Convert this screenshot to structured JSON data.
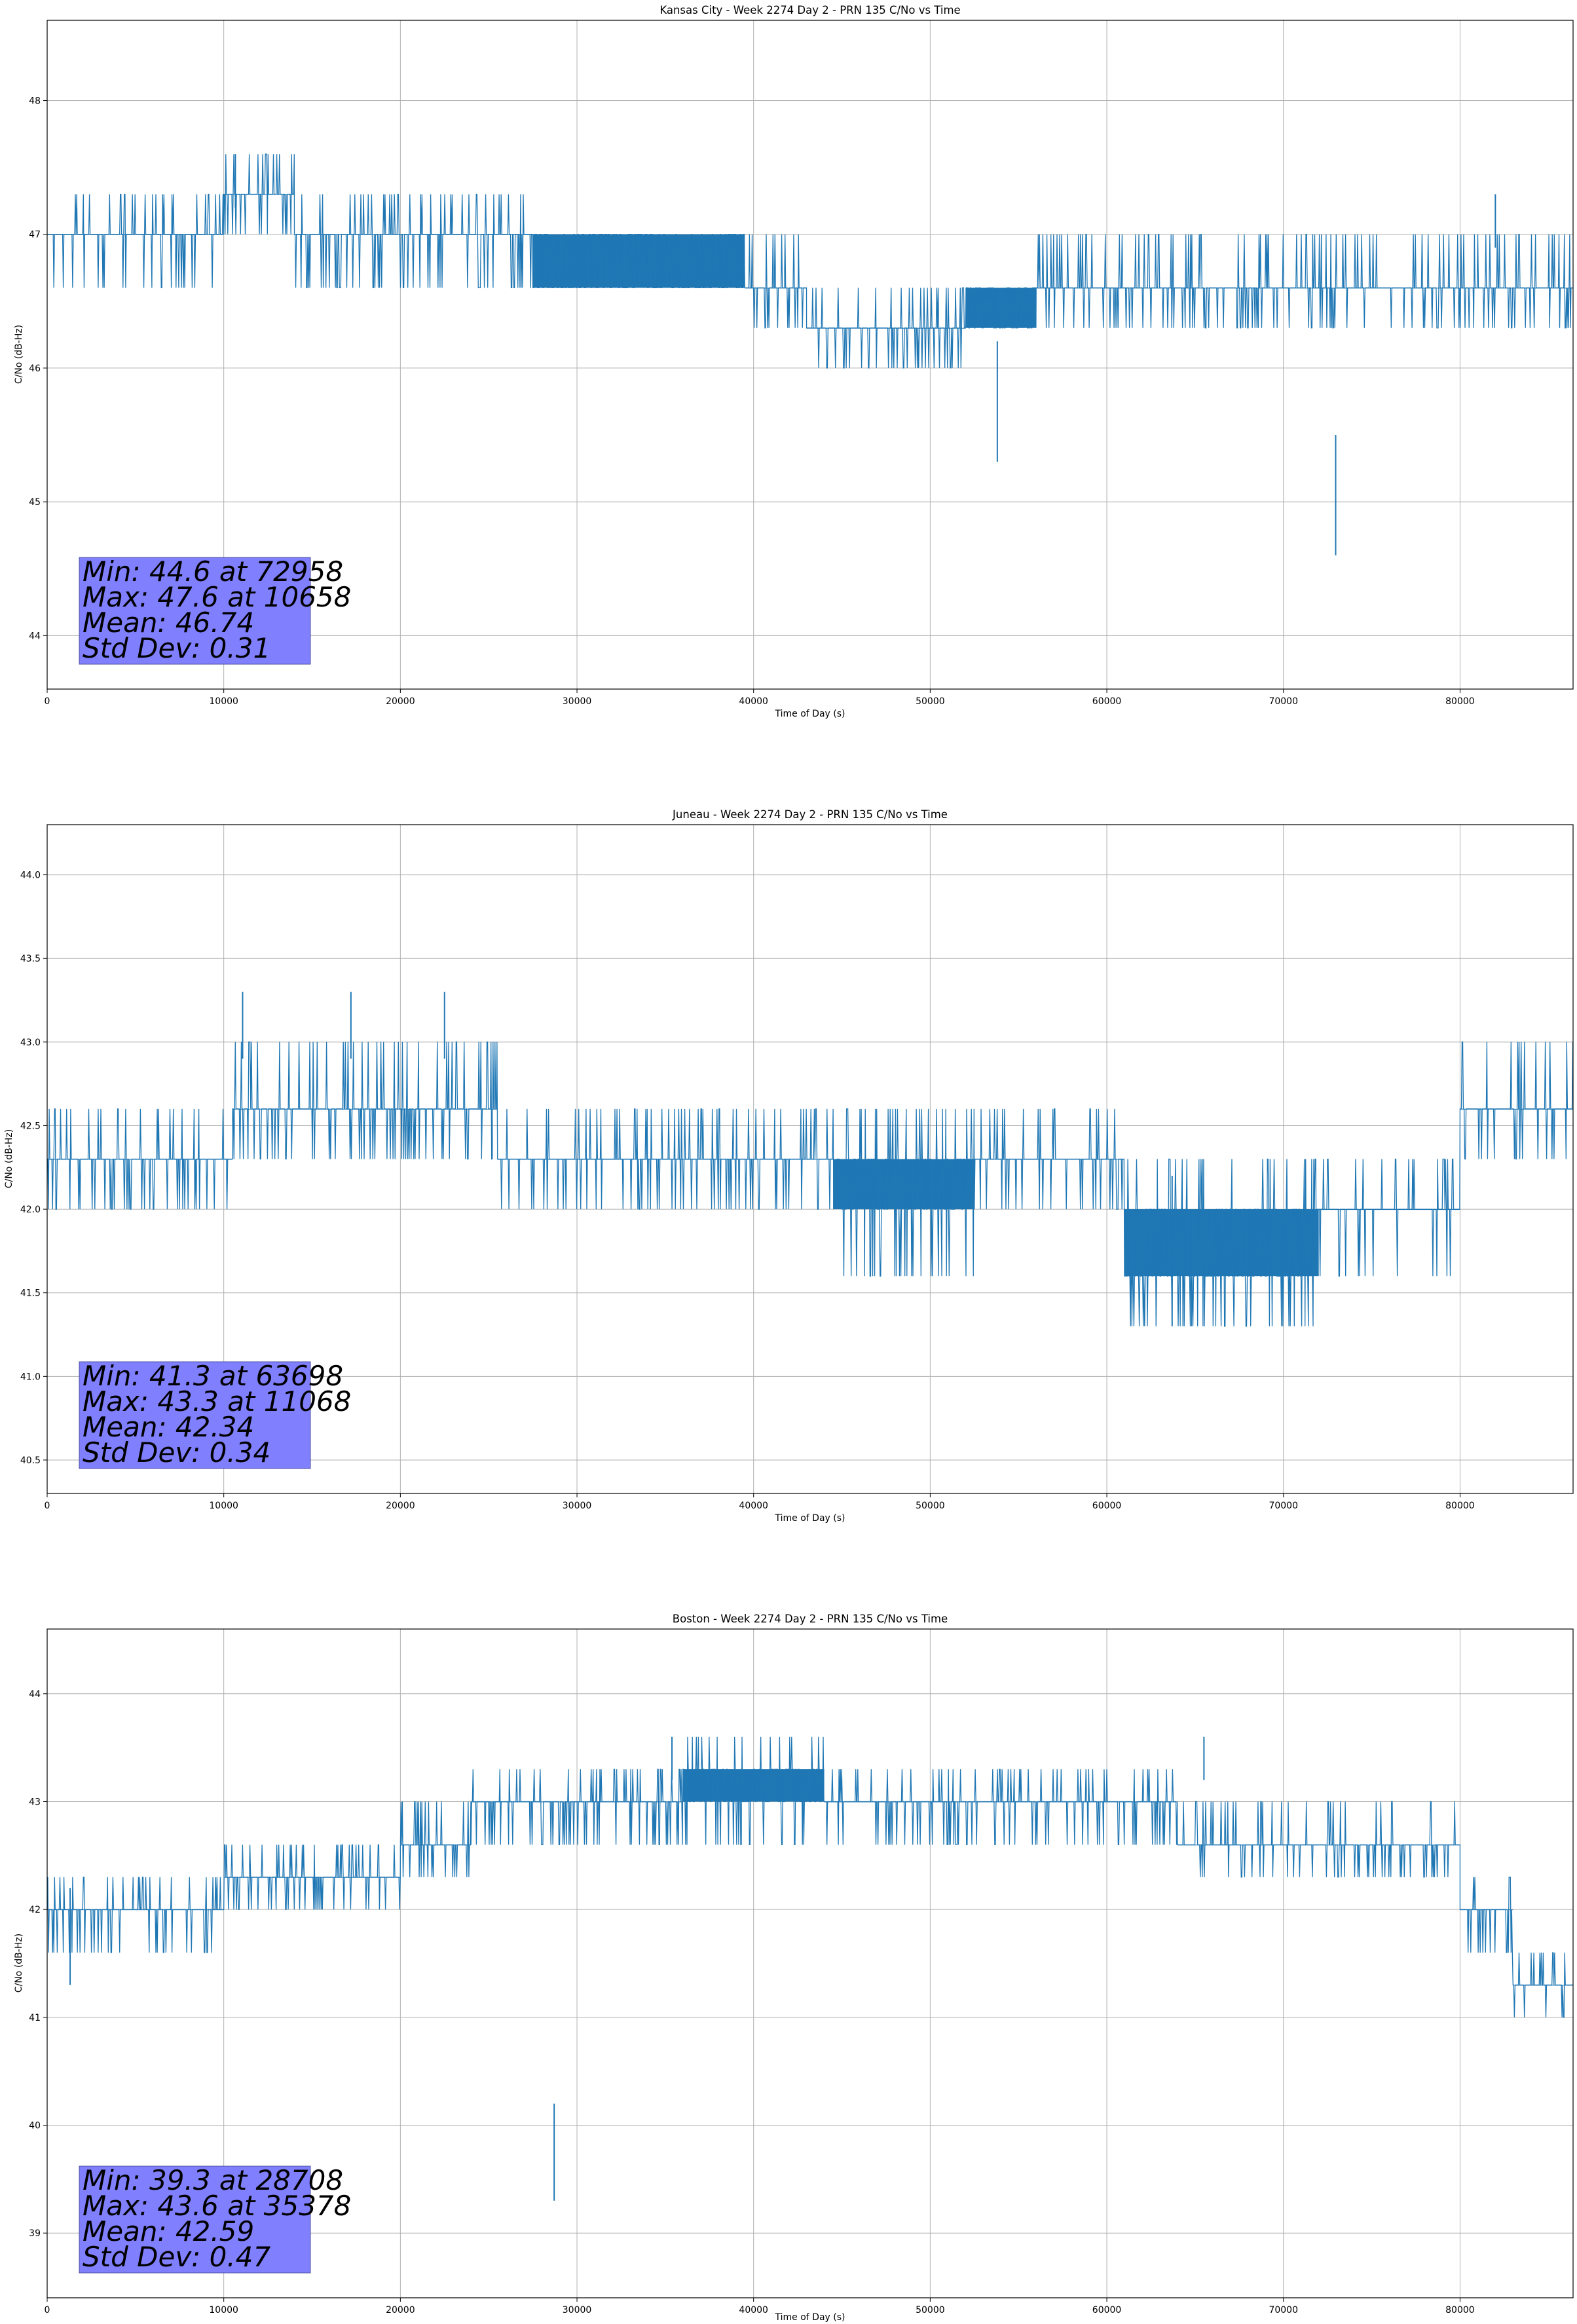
{
  "chart_data": [
    {
      "type": "line",
      "title": "Kansas City - Week 2274 Day 2 - PRN 135 C/No vs Time",
      "xlabel": "Time of Day (s)",
      "ylabel": "C/No (dB-Hz)",
      "xlim": [
        0,
        86400
      ],
      "ylim": [
        43.6,
        48.6
      ],
      "grid": true,
      "xticks": [
        0,
        10000,
        20000,
        30000,
        40000,
        50000,
        60000,
        70000,
        80000
      ],
      "xtick_labels": [
        "0",
        "10000",
        "20000",
        "30000",
        "40000",
        "50000",
        "60000",
        "70000",
        "80000"
      ],
      "yticks": [
        44,
        45,
        46,
        47,
        48
      ],
      "ytick_labels": [
        "44",
        "45",
        "46",
        "47",
        "48"
      ],
      "color": "#1f77b4",
      "stats": [
        "Min: 44.6 at 72958",
        "Max: 47.6 at 10658",
        "Mean: 46.74",
        "Std Dev: 0.31"
      ],
      "stats_box_color": "#8080ff",
      "series": [
        {
          "name": "C/No",
          "segments": [
            {
              "x0": 0,
              "x1": 10000,
              "levels": [
                46.6,
                47.0,
                47.3
              ]
            },
            {
              "x0": 10000,
              "x1": 14000,
              "levels": [
                47.0,
                47.3,
                47.6
              ]
            },
            {
              "x0": 14000,
              "x1": 27500,
              "levels": [
                46.6,
                47.0,
                47.3
              ]
            },
            {
              "x0": 27500,
              "x1": 39500,
              "levels": [
                46.6,
                47.0
              ]
            },
            {
              "x0": 39500,
              "x1": 43000,
              "levels": [
                46.3,
                46.6,
                47.0
              ]
            },
            {
              "x0": 43000,
              "x1": 52000,
              "levels": [
                46.0,
                46.3,
                46.6
              ]
            },
            {
              "x0": 52000,
              "x1": 56000,
              "levels": [
                46.3,
                46.6
              ]
            },
            {
              "x0": 56000,
              "x1": 86400,
              "levels": [
                46.3,
                46.6,
                47.0
              ]
            }
          ],
          "spikes": [
            {
              "x": 53800,
              "y": 45.3
            },
            {
              "x": 72958,
              "y": 44.6
            },
            {
              "x": 10658,
              "y": 47.6
            },
            {
              "x": 82000,
              "y": 47.3
            }
          ]
        }
      ]
    },
    {
      "type": "line",
      "title": "Juneau - Week 2274 Day 2 - PRN 135 C/No vs Time",
      "xlabel": "Time of Day (s)",
      "ylabel": "C/No (dB-Hz)",
      "xlim": [
        0,
        86400
      ],
      "ylim": [
        40.3,
        44.3
      ],
      "grid": true,
      "xticks": [
        0,
        10000,
        20000,
        30000,
        40000,
        50000,
        60000,
        70000,
        80000
      ],
      "xtick_labels": [
        "0",
        "10000",
        "20000",
        "30000",
        "40000",
        "50000",
        "60000",
        "70000",
        "80000"
      ],
      "yticks": [
        40.5,
        41.0,
        41.5,
        42.0,
        42.5,
        43.0,
        43.5,
        44.0
      ],
      "ytick_labels": [
        "40.5",
        "41.0",
        "41.5",
        "42.0",
        "42.5",
        "43.0",
        "43.5",
        "44.0"
      ],
      "color": "#1f77b4",
      "stats": [
        "Min: 41.3 at 63698",
        "Max: 43.3 at 11068",
        "Mean: 42.34",
        "Std Dev: 0.34"
      ],
      "stats_box_color": "#8080ff",
      "series": [
        {
          "name": "C/No",
          "segments": [
            {
              "x0": 0,
              "x1": 10500,
              "levels": [
                42.0,
                42.3,
                42.6
              ]
            },
            {
              "x0": 10500,
              "x1": 25500,
              "levels": [
                42.3,
                42.6,
                43.0
              ]
            },
            {
              "x0": 25500,
              "x1": 44500,
              "levels": [
                42.0,
                42.3,
                42.6
              ]
            },
            {
              "x0": 44500,
              "x1": 52500,
              "levels": [
                41.6,
                42.0,
                42.3,
                42.6
              ]
            },
            {
              "x0": 52500,
              "x1": 61000,
              "levels": [
                42.0,
                42.3,
                42.6
              ]
            },
            {
              "x0": 61000,
              "x1": 72000,
              "levels": [
                41.3,
                41.6,
                42.0,
                42.3
              ]
            },
            {
              "x0": 72000,
              "x1": 80000,
              "levels": [
                41.6,
                42.0,
                42.3
              ]
            },
            {
              "x0": 80000,
              "x1": 86400,
              "levels": [
                42.3,
                42.6,
                43.0
              ]
            }
          ],
          "spikes": [
            {
              "x": 11068,
              "y": 43.3
            },
            {
              "x": 17200,
              "y": 43.3
            },
            {
              "x": 22500,
              "y": 43.3
            },
            {
              "x": 63698,
              "y": 41.3
            }
          ]
        }
      ]
    },
    {
      "type": "line",
      "title": "Boston - Week 2274 Day 2 - PRN 135 C/No vs Time",
      "xlabel": "Time of Day (s)",
      "ylabel": "C/No (dB-Hz)",
      "xlim": [
        0,
        86400
      ],
      "ylim": [
        38.4,
        44.6
      ],
      "grid": true,
      "xticks": [
        0,
        10000,
        20000,
        30000,
        40000,
        50000,
        60000,
        70000,
        80000
      ],
      "xtick_labels": [
        "0",
        "10000",
        "20000",
        "30000",
        "40000",
        "50000",
        "60000",
        "70000",
        "80000"
      ],
      "yticks": [
        39,
        40,
        41,
        42,
        43,
        44
      ],
      "ytick_labels": [
        "39",
        "40",
        "41",
        "42",
        "43",
        "44"
      ],
      "color": "#1f77b4",
      "stats": [
        "Min: 39.3 at 28708",
        "Max: 43.6 at 35378",
        "Mean: 42.59",
        "Std Dev: 0.47"
      ],
      "stats_box_color": "#8080ff",
      "series": [
        {
          "name": "C/No",
          "segments": [
            {
              "x0": 0,
              "x1": 10000,
              "levels": [
                41.6,
                42.0,
                42.3
              ]
            },
            {
              "x0": 10000,
              "x1": 20000,
              "levels": [
                42.0,
                42.3,
                42.6
              ]
            },
            {
              "x0": 20000,
              "x1": 24000,
              "levels": [
                42.3,
                42.6,
                43.0
              ]
            },
            {
              "x0": 24000,
              "x1": 36000,
              "levels": [
                42.6,
                43.0,
                43.3
              ]
            },
            {
              "x0": 36000,
              "x1": 44000,
              "levels": [
                42.6,
                43.0,
                43.3,
                43.6
              ]
            },
            {
              "x0": 44000,
              "x1": 64000,
              "levels": [
                42.6,
                43.0,
                43.3
              ]
            },
            {
              "x0": 64000,
              "x1": 80000,
              "levels": [
                42.3,
                42.6,
                43.0
              ]
            },
            {
              "x0": 80000,
              "x1": 83000,
              "levels": [
                41.6,
                42.0,
                42.3
              ]
            },
            {
              "x0": 83000,
              "x1": 86400,
              "levels": [
                41.0,
                41.3,
                41.6
              ]
            }
          ],
          "spikes": [
            {
              "x": 28708,
              "y": 39.3
            },
            {
              "x": 35378,
              "y": 43.6
            },
            {
              "x": 1300,
              "y": 41.3
            },
            {
              "x": 65500,
              "y": 43.6
            }
          ]
        }
      ]
    }
  ]
}
